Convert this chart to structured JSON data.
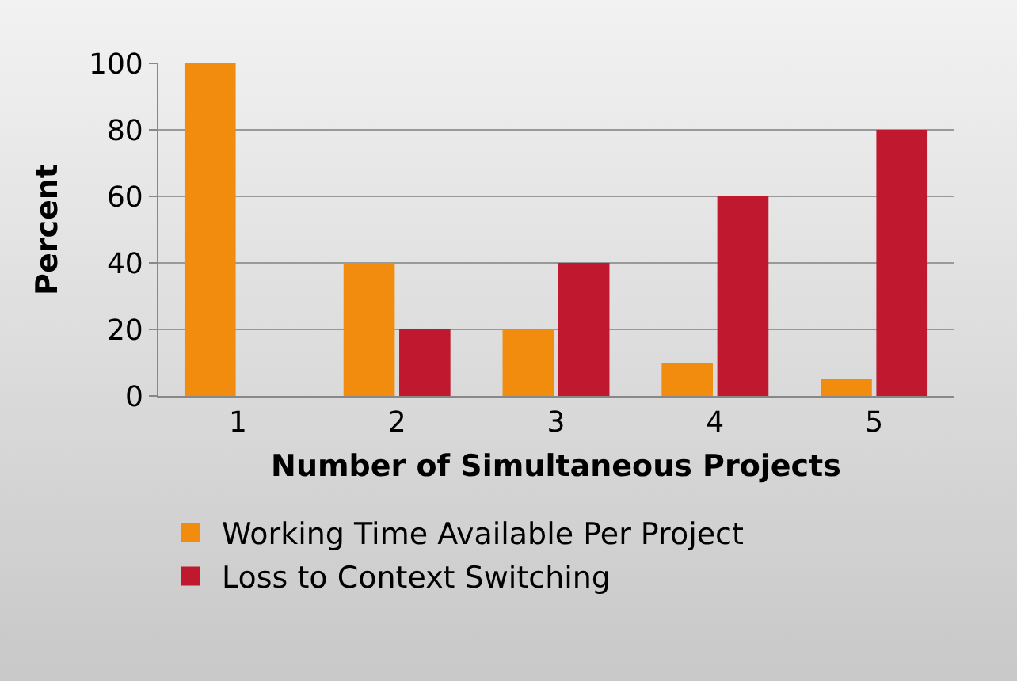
{
  "chart_data": {
    "type": "bar",
    "xlabel": "Number of Simultaneous Projects",
    "ylabel": "Percent",
    "categories": [
      "1",
      "2",
      "3",
      "4",
      "5"
    ],
    "series": [
      {
        "name": "Working Time Available Per Project",
        "color": "#f28c0f",
        "values": [
          100,
          40,
          20,
          10,
          5
        ]
      },
      {
        "name": "Loss to Context Switching",
        "color": "#c0182e",
        "values": [
          0,
          20,
          40,
          60,
          80
        ]
      }
    ],
    "ylim": [
      0,
      100
    ],
    "yticks": [
      0,
      20,
      40,
      60,
      80,
      100
    ],
    "grid": "y",
    "legend": "bottom"
  }
}
